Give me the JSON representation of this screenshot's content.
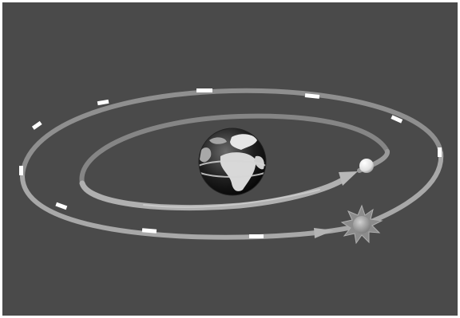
{
  "scene": {
    "background_color": "#4a4a4a",
    "border_color": "#ffffff",
    "orbit_colors": {
      "outer_band": "#9c9c9c",
      "inner_band": "#a6a6a6",
      "highlight": "#d8d8d8",
      "marker": "#ffffff"
    },
    "icons": {
      "earth": "earth-globe-icon",
      "moon": "moon-icon",
      "sun": "sun-icon"
    }
  }
}
